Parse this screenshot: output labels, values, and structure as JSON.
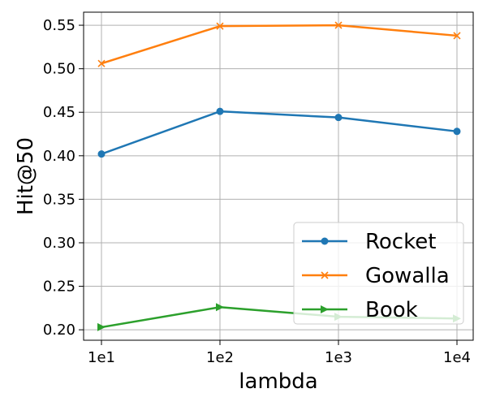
{
  "chart_data": {
    "type": "line",
    "x_categories": [
      "1e1",
      "1e2",
      "1e3",
      "1e4"
    ],
    "xlabel": "lambda",
    "ylabel": "Hit@50",
    "ylim": [
      0.188,
      0.565
    ],
    "yticks": [
      "0.20",
      "0.25",
      "0.30",
      "0.35",
      "0.40",
      "0.45",
      "0.50",
      "0.55"
    ],
    "grid": true,
    "legend_position": "bottom-right",
    "series": [
      {
        "name": "Rocket",
        "marker": "circle",
        "color": "#1f77b4",
        "values": [
          0.402,
          0.451,
          0.444,
          0.428
        ]
      },
      {
        "name": "Gowalla",
        "marker": "x",
        "color": "#ff7f0e",
        "values": [
          0.506,
          0.549,
          0.55,
          0.538
        ]
      },
      {
        "name": "Book",
        "marker": "triangle-right",
        "color": "#2ca02c",
        "values": [
          0.203,
          0.226,
          0.215,
          0.213
        ]
      }
    ]
  }
}
